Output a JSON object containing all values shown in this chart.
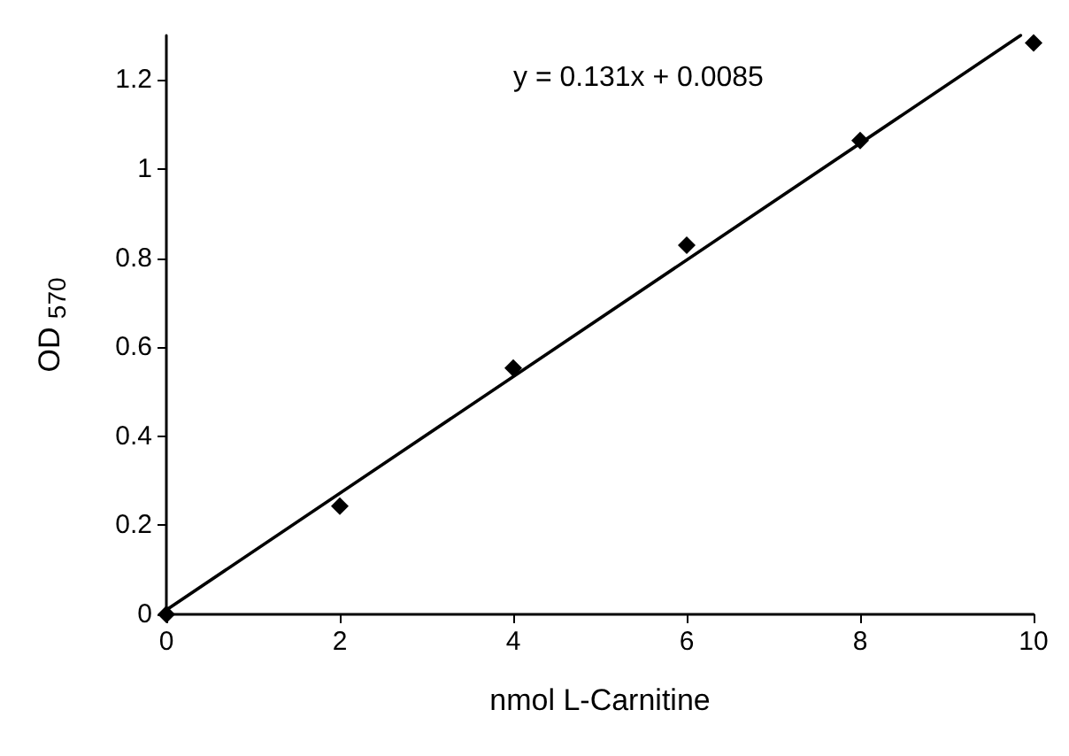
{
  "chart_data": {
    "type": "scatter",
    "xlabel": "nmol L-Carnitine",
    "ylabel": "OD $_{570}$",
    "annotations": [
      "y = 0.131x + 0.0085"
    ],
    "series": [
      {
        "color": "#000000",
        "marker": "diamond",
        "x": [
          0,
          2,
          4,
          6,
          8,
          10
        ],
        "values": [
          0,
          0.243,
          0.553,
          0.829,
          1.064,
          1.283
        ]
      },
      {
        "type": "line",
        "color": "#000000",
        "marker": "none",
        "line_style": "solid",
        "x": [
          0,
          9.85
        ],
        "values": [
          0.01,
          1.3
        ]
      }
    ],
    "xlim": [
      0,
      10
    ],
    "xticks": [
      0,
      2,
      4,
      6,
      8,
      10
    ],
    "ylim": [
      0,
      1.3
    ],
    "yticks": [
      0,
      0.2,
      0.4,
      0.6,
      0.8,
      1,
      1.2
    ],
    "grid": false
  }
}
